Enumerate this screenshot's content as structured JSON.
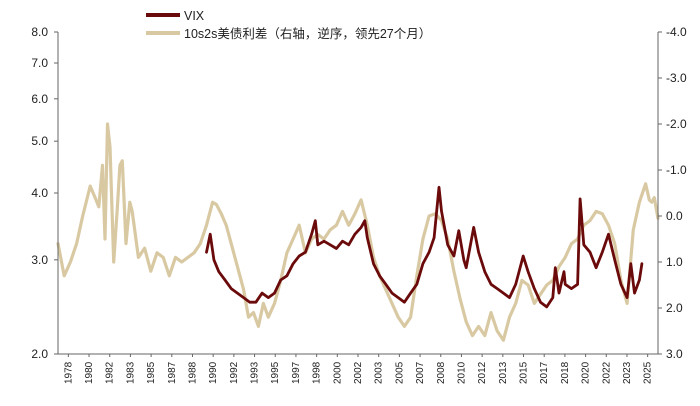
{
  "chart_data": {
    "type": "line",
    "title": "",
    "legend_position": "top-left",
    "grid": false,
    "x_ticks": [
      "1978",
      "1980",
      "1982",
      "1983",
      "1985",
      "1987",
      "1988",
      "1990",
      "1992",
      "1993",
      "1995",
      "1997",
      "1998",
      "2000",
      "2002",
      "2003",
      "2005",
      "2007",
      "2008",
      "2010",
      "2012",
      "2013",
      "2015",
      "2017",
      "2018",
      "2020",
      "2022",
      "2023",
      "2025"
    ],
    "xlim": [
      1978,
      2026.5
    ],
    "y_left": {
      "ylim": [
        2.0,
        8.0
      ],
      "ticks": [
        "2.0",
        "3.0",
        "4.0",
        "5.0",
        "6.0",
        "7.0",
        "8.0"
      ],
      "scale": "log"
    },
    "y_right": {
      "ylim": [
        3.0,
        -4.0
      ],
      "inverted": true,
      "ticks": [
        "-4.0",
        "-3.0",
        "-2.0",
        "-1.0",
        "0.0",
        "1.0",
        "2.0",
        "3.0"
      ]
    },
    "series": [
      {
        "name": "VIX",
        "axis": "left",
        "color": "#6B0A0A",
        "points": [
          [
            1990.0,
            3.1
          ],
          [
            1990.3,
            3.35
          ],
          [
            1990.6,
            3.0
          ],
          [
            1991.0,
            2.85
          ],
          [
            1991.5,
            2.75
          ],
          [
            1992.0,
            2.65
          ],
          [
            1992.5,
            2.6
          ],
          [
            1993.0,
            2.55
          ],
          [
            1993.5,
            2.5
          ],
          [
            1994.0,
            2.5
          ],
          [
            1994.5,
            2.6
          ],
          [
            1995.0,
            2.55
          ],
          [
            1995.5,
            2.6
          ],
          [
            1996.0,
            2.75
          ],
          [
            1996.5,
            2.8
          ],
          [
            1997.0,
            2.95
          ],
          [
            1997.5,
            3.05
          ],
          [
            1998.0,
            3.1
          ],
          [
            1998.5,
            3.35
          ],
          [
            1998.8,
            3.55
          ],
          [
            1999.0,
            3.2
          ],
          [
            1999.5,
            3.25
          ],
          [
            2000.0,
            3.2
          ],
          [
            2000.5,
            3.15
          ],
          [
            2001.0,
            3.25
          ],
          [
            2001.5,
            3.2
          ],
          [
            2002.0,
            3.35
          ],
          [
            2002.5,
            3.45
          ],
          [
            2002.8,
            3.55
          ],
          [
            2003.0,
            3.3
          ],
          [
            2003.5,
            2.95
          ],
          [
            2004.0,
            2.8
          ],
          [
            2004.5,
            2.7
          ],
          [
            2005.0,
            2.6
          ],
          [
            2005.5,
            2.55
          ],
          [
            2006.0,
            2.5
          ],
          [
            2006.5,
            2.6
          ],
          [
            2007.0,
            2.7
          ],
          [
            2007.5,
            2.95
          ],
          [
            2008.0,
            3.1
          ],
          [
            2008.4,
            3.3
          ],
          [
            2008.8,
            4.1
          ],
          [
            2009.0,
            3.7
          ],
          [
            2009.5,
            3.2
          ],
          [
            2010.0,
            3.05
          ],
          [
            2010.4,
            3.4
          ],
          [
            2010.8,
            3.0
          ],
          [
            2011.0,
            2.9
          ],
          [
            2011.6,
            3.45
          ],
          [
            2012.0,
            3.1
          ],
          [
            2012.5,
            2.85
          ],
          [
            2013.0,
            2.7
          ],
          [
            2013.5,
            2.65
          ],
          [
            2014.0,
            2.6
          ],
          [
            2014.5,
            2.55
          ],
          [
            2015.0,
            2.7
          ],
          [
            2015.6,
            3.05
          ],
          [
            2016.0,
            2.85
          ],
          [
            2016.5,
            2.65
          ],
          [
            2017.0,
            2.5
          ],
          [
            2017.5,
            2.45
          ],
          [
            2018.0,
            2.55
          ],
          [
            2018.2,
            2.9
          ],
          [
            2018.5,
            2.6
          ],
          [
            2018.9,
            2.85
          ],
          [
            2019.0,
            2.7
          ],
          [
            2019.5,
            2.65
          ],
          [
            2020.0,
            2.7
          ],
          [
            2020.2,
            3.9
          ],
          [
            2020.5,
            3.2
          ],
          [
            2021.0,
            3.1
          ],
          [
            2021.5,
            2.9
          ],
          [
            2022.0,
            3.1
          ],
          [
            2022.5,
            3.35
          ],
          [
            2023.0,
            3.0
          ],
          [
            2023.5,
            2.7
          ],
          [
            2024.0,
            2.55
          ],
          [
            2024.3,
            2.95
          ],
          [
            2024.6,
            2.6
          ],
          [
            2025.0,
            2.75
          ],
          [
            2025.2,
            2.95
          ]
        ]
      },
      {
        "name": "10s2s美债利差（右轴，逆序，领先27个月）",
        "axis": "right",
        "color": "#D9C9A3",
        "points": [
          [
            1978.0,
            0.6
          ],
          [
            1978.5,
            1.3
          ],
          [
            1979.0,
            1.0
          ],
          [
            1979.5,
            0.6
          ],
          [
            1980.0,
            0.0
          ],
          [
            1980.6,
            -0.65
          ],
          [
            1981.0,
            -0.4
          ],
          [
            1981.3,
            -0.2
          ],
          [
            1981.6,
            -1.1
          ],
          [
            1981.8,
            0.5
          ],
          [
            1982.0,
            -2.0
          ],
          [
            1982.2,
            -1.5
          ],
          [
            1982.5,
            1.0
          ],
          [
            1982.8,
            -0.2
          ],
          [
            1983.0,
            -1.1
          ],
          [
            1983.2,
            -1.2
          ],
          [
            1983.5,
            0.6
          ],
          [
            1983.8,
            -0.3
          ],
          [
            1984.0,
            -0.1
          ],
          [
            1984.5,
            0.9
          ],
          [
            1985.0,
            0.7
          ],
          [
            1985.5,
            1.2
          ],
          [
            1986.0,
            0.8
          ],
          [
            1986.5,
            0.9
          ],
          [
            1987.0,
            1.3
          ],
          [
            1987.5,
            0.9
          ],
          [
            1988.0,
            1.0
          ],
          [
            1988.5,
            0.9
          ],
          [
            1989.0,
            0.8
          ],
          [
            1989.5,
            0.6
          ],
          [
            1990.0,
            0.2
          ],
          [
            1990.5,
            -0.3
          ],
          [
            1990.8,
            -0.25
          ],
          [
            1991.2,
            -0.05
          ],
          [
            1991.6,
            0.2
          ],
          [
            1992.0,
            0.6
          ],
          [
            1992.5,
            1.1
          ],
          [
            1993.0,
            1.6
          ],
          [
            1993.4,
            2.2
          ],
          [
            1993.8,
            2.1
          ],
          [
            1994.2,
            2.4
          ],
          [
            1994.6,
            1.9
          ],
          [
            1995.0,
            2.2
          ],
          [
            1995.5,
            1.9
          ],
          [
            1996.0,
            1.4
          ],
          [
            1996.5,
            0.8
          ],
          [
            1997.0,
            0.5
          ],
          [
            1997.5,
            0.2
          ],
          [
            1998.0,
            0.8
          ],
          [
            1998.5,
            0.5
          ],
          [
            1999.0,
            0.4
          ],
          [
            1999.5,
            0.5
          ],
          [
            2000.0,
            0.3
          ],
          [
            2000.5,
            0.2
          ],
          [
            2001.0,
            -0.1
          ],
          [
            2001.5,
            0.2
          ],
          [
            2002.0,
            -0.05
          ],
          [
            2002.5,
            -0.35
          ],
          [
            2003.0,
            0.2
          ],
          [
            2003.5,
            0.9
          ],
          [
            2004.0,
            1.3
          ],
          [
            2004.5,
            1.6
          ],
          [
            2005.0,
            1.9
          ],
          [
            2005.5,
            2.2
          ],
          [
            2006.0,
            2.4
          ],
          [
            2006.5,
            2.2
          ],
          [
            2007.0,
            1.3
          ],
          [
            2007.5,
            0.5
          ],
          [
            2008.0,
            0.0
          ],
          [
            2008.5,
            -0.05
          ],
          [
            2009.0,
            0.1
          ],
          [
            2009.5,
            0.5
          ],
          [
            2010.0,
            1.2
          ],
          [
            2010.5,
            1.8
          ],
          [
            2011.0,
            2.3
          ],
          [
            2011.5,
            2.6
          ],
          [
            2012.0,
            2.4
          ],
          [
            2012.5,
            2.6
          ],
          [
            2013.0,
            2.1
          ],
          [
            2013.5,
            2.5
          ],
          [
            2014.0,
            2.7
          ],
          [
            2014.5,
            2.2
          ],
          [
            2015.0,
            1.9
          ],
          [
            2015.5,
            1.4
          ],
          [
            2016.0,
            1.5
          ],
          [
            2016.5,
            1.9
          ],
          [
            2017.0,
            1.7
          ],
          [
            2017.5,
            1.5
          ],
          [
            2018.0,
            1.4
          ],
          [
            2018.5,
            1.1
          ],
          [
            2019.0,
            0.9
          ],
          [
            2019.5,
            0.6
          ],
          [
            2020.0,
            0.5
          ],
          [
            2020.5,
            0.2
          ],
          [
            2021.0,
            0.1
          ],
          [
            2021.5,
            -0.1
          ],
          [
            2022.0,
            -0.05
          ],
          [
            2022.5,
            0.2
          ],
          [
            2023.0,
            0.6
          ],
          [
            2023.5,
            1.4
          ],
          [
            2024.0,
            1.9
          ],
          [
            2024.5,
            0.3
          ],
          [
            2025.0,
            -0.3
          ],
          [
            2025.5,
            -0.7
          ],
          [
            2025.8,
            -0.35
          ],
          [
            2026.0,
            -0.3
          ],
          [
            2026.2,
            -0.4
          ],
          [
            2026.5,
            0.05
          ]
        ]
      }
    ]
  }
}
